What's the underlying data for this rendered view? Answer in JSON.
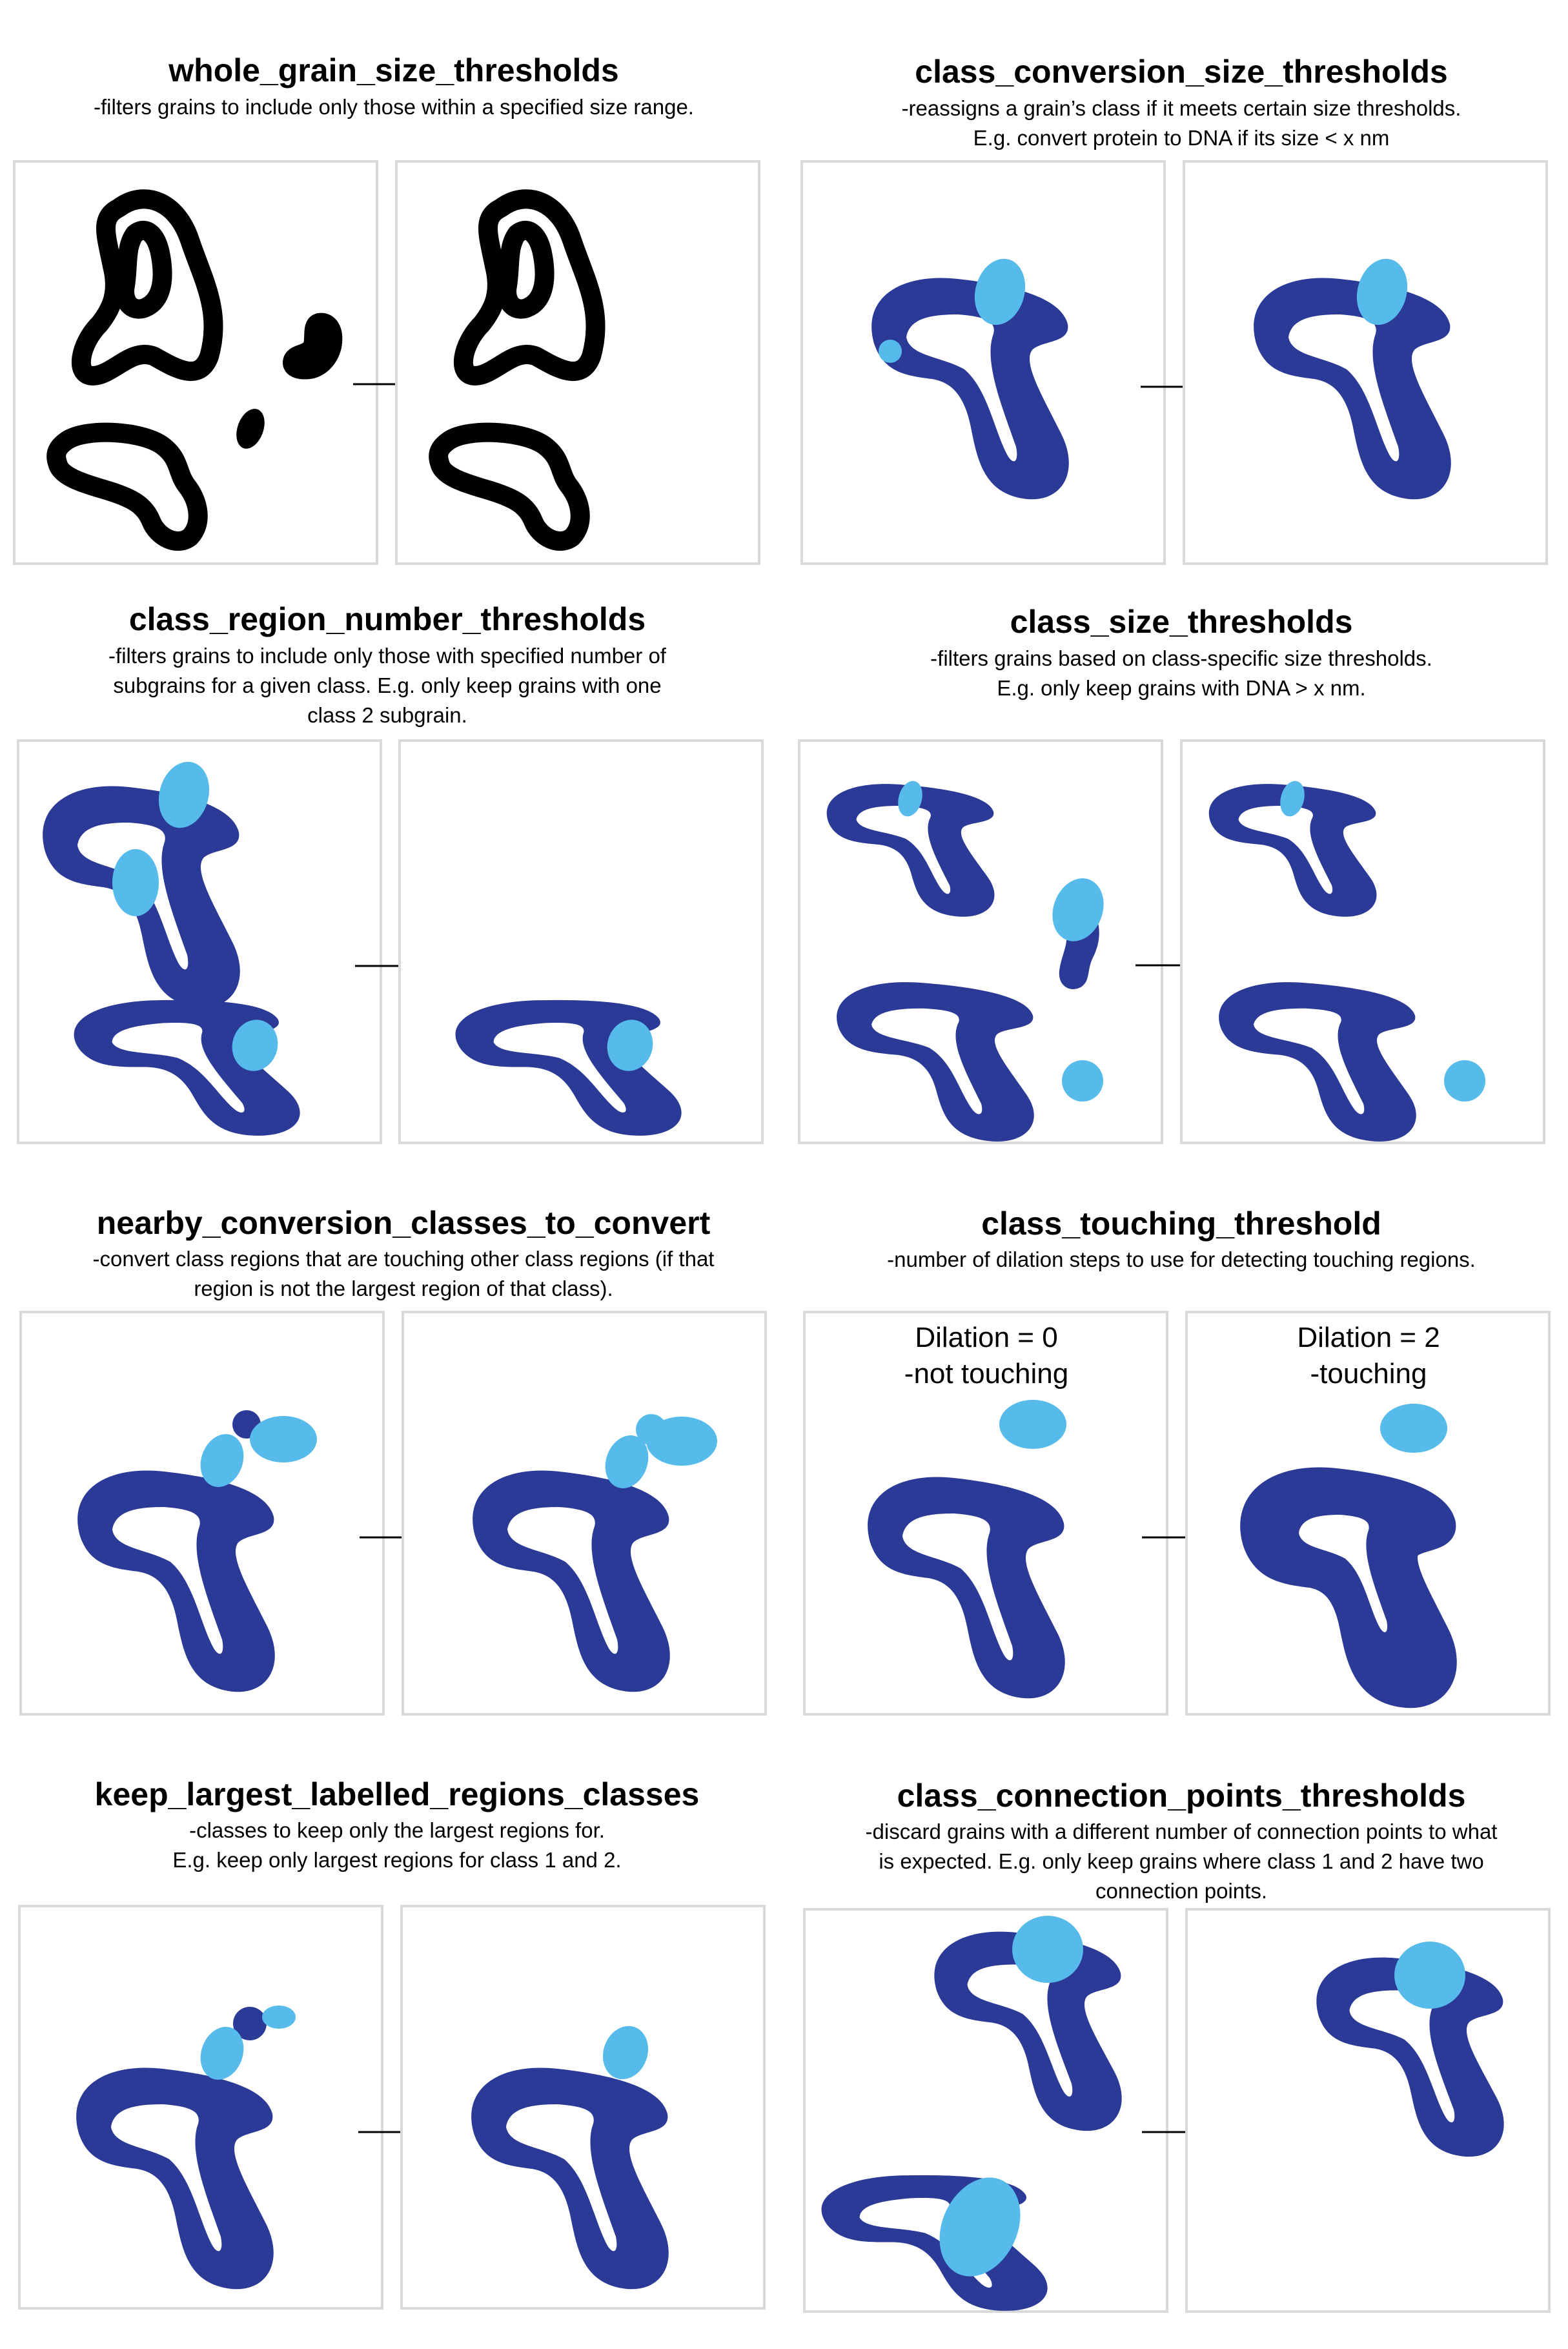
{
  "colors": {
    "dark_blue": "#2b3a96",
    "light_blue": "#56bbea",
    "black": "#000000",
    "box_border": "#d9d9d9"
  },
  "sections": [
    {
      "id": "s1",
      "title": "whole_grain_size_thresholds",
      "desc": [
        "-filters grains to include only those within a specified size range."
      ]
    },
    {
      "id": "s2",
      "title": "class_conversion_size_thresholds",
      "desc": [
        "-reassigns a grain’s class if it meets certain size thresholds.",
        "E.g. convert protein to DNA if its size < x nm"
      ]
    },
    {
      "id": "s3",
      "title": "class_region_number_thresholds",
      "desc": [
        "-filters grains to include only those with specified number of",
        "subgrains for a given class. E.g. only keep grains with one",
        "class 2 subgrain."
      ]
    },
    {
      "id": "s4",
      "title": "class_size_thresholds",
      "desc": [
        "-filters grains based on class-specific size thresholds.",
        "E.g. only keep grains with DNA > x nm."
      ]
    },
    {
      "id": "s5",
      "title": "nearby_conversion_classes_to_convert",
      "desc": [
        "-convert class regions that are touching other class regions (if that",
        "region is not the largest region of that class)."
      ]
    },
    {
      "id": "s6",
      "title": "class_touching_threshold",
      "desc": [
        "-number of dilation steps to use for detecting touching regions."
      ],
      "labels": {
        "before_1": "Dilation = 0",
        "before_2": "-not touching",
        "after_1": "Dilation = 2",
        "after_2": "-touching"
      }
    },
    {
      "id": "s7",
      "title": "keep_largest_labelled_regions_classes",
      "desc": [
        "-classes to keep only the largest regions for.",
        "E.g. keep only largest regions for class 1 and 2."
      ]
    },
    {
      "id": "s8",
      "title": "class_connection_points_thresholds",
      "desc": [
        "-discard grains with a different number of connection points to what",
        "is expected. E.g. only keep grains where class 1 and 2 have two",
        "connection points."
      ]
    }
  ]
}
